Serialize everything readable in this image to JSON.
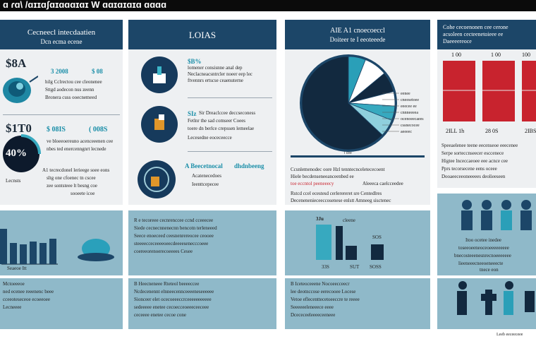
{
  "header": {
    "title": "ɑ ɾɑ\\ /ɑɪɪɑʃɑɪɑɑɑɪɑɪ W ɑɑɪɑɪɑɪɑ ɑɑɑɑ"
  },
  "panel1": {
    "heading": "Cecneecl intecdaatien",
    "subheading": "Dcn ecma ecene",
    "stat1": "$8A",
    "stat1_val": "3 2008",
    "stat1_val2": "$ 08",
    "stat1_lines": [
      "hilg Cclrectou cee cleonenee",
      "Sttgd aodecon nus zeenn",
      "Bronera cuss ooecnemeed"
    ],
    "stat2": "$1T0",
    "stat2_val": "$ 08IS",
    "stat2_val2": "( 008S",
    "pie_label": "40%",
    "stat2_lines": [
      "ve bloeeoereuno acenceeenen cee",
      "nbes ted enercenngnrt lecnede",
      "A1 tecrecdonel lerieege soee eons",
      "sltg one cfoenec tn cscee",
      "zee sontsteee lt besng coe",
      "sooeete icoe"
    ],
    "foot": "Lecnsts"
  },
  "panel2": {
    "heading": "LOIAS",
    "rows": [
      {
        "tag": "$B%",
        "lines": [
          "lomener consisnne anal dep",
          "Neclacneacsntrcler noeer eep lec",
          "ftvennrs ertscse ceaenuterne"
        ]
      },
      {
        "tag": "SIz",
        "lines": [
          "Sir Dreaclccee deccseconess",
          "Fetlnr the sad comseer Coees",
          "toere dn berlce crepssen lemeelae",
          "Lecesedne eoceceecce"
        ]
      },
      {
        "tag": "A Beecetnocal",
        "tag2": "dhdnbeeng",
        "lines": [
          "Acatenecedoes",
          "Ieenttcepecee"
        ]
      }
    ]
  },
  "panel3": {
    "heading": "AIE A1 cnoecoeccl",
    "subheading": "Doiteer te I eeoteeede",
    "slice_labels": [
      "eenee",
      "cneesetoee",
      "eeecee ee",
      "cnnneeeea",
      "ocenoeecaees",
      "cssnecocee",
      "aeeeec"
    ],
    "center_tag": "I cee",
    "body": [
      "Ccsnlemenodec oore Hzl tenntecnceletececoent",
      "Hiele becdenseneeanceenbed ee",
      "toe eccntol peeneeecy",
      "Aleeeca caelcceedee",
      "Rstcd ccel ecestesd cerlerereret sre Centedlres",
      "Decenenenieceeccosenese enlstt Amneeg sisctenec"
    ]
  },
  "panel4": {
    "heading": "Cohe cecoenonen cee cerone",
    "subheading_lines": [
      "acsoleen cecteenetoieee ee",
      "Daeeeereoce"
    ],
    "top_values": [
      "1 00",
      "1 00",
      "100"
    ],
    "bar_labels": [
      "2ILL 1h",
      "28 0S",
      "2IBS"
    ],
    "body": [
      "Speeaelenee teene eecenseoe eeecenee",
      "Serpe sorteccnseecer esccenece",
      "Higtee lnceccaeoee eee acnce cee",
      "Pprs tecorsecene eens oceee",
      "Dooaeeceeoneeeees deolieeseen"
    ]
  },
  "row2": {
    "a_axis": "Seaeoe Itt",
    "b_lines": [
      "R e tecoreee cecnrenccee ccnd cceeecee",
      "Siede cecnecnnenecnn bencotn terleneeed",
      "Seece enoeceed ceesnenrereocee ceooee",
      "steeeecceceeeeoeecdeeeesenecccoeee",
      "coereeorenoerecoeeees Cesee"
    ],
    "c_top": "3Ju",
    "c_mid": "cleene",
    "c_value": "SOS",
    "c_labels": [
      "33S",
      "SUT",
      "SOSS"
    ],
    "d_lines": [
      "Itoo ocetee inedee",
      "toseeoeeneoceoeeeeeeeee",
      "bnecosteeenesnrecnoeeeeeee",
      "lieeneeecneeoeneeecte",
      "tnece eon"
    ]
  },
  "row3": {
    "a_lines": [
      "Mctoeeeoe",
      "ned ecenee reeenenc beee",
      "cceeoteseceoe ecoeeoee",
      "Lecneeee"
    ],
    "b_lines": [
      "B Heecneneee  Rteteol beeeeccee",
      "Ncdecenennt elnneecennceeeeneseeeeee",
      "Sionceer elet ocecoeeeccrceeeeeeeeeee",
      "sedeeeee enetee cecoecceoeeeceeceee",
      "ceceeee enetee cecoe cone"
    ],
    "c_lines": [
      "B Iceteoceeene Nocoeecceecr",
      "lee deotnccose eerecooee Locese",
      "Vetoe eflecenttecetoeeccre te reeee",
      "Seeeeeeleneeece eeee",
      "Dcececeeleeeeceeneee"
    ],
    "credit": "Leeb eeceeceee"
  },
  "colors": {
    "navy": "#1c4668",
    "teal": "#37a9bf",
    "red": "#c8232e",
    "dark": "#12293f"
  }
}
